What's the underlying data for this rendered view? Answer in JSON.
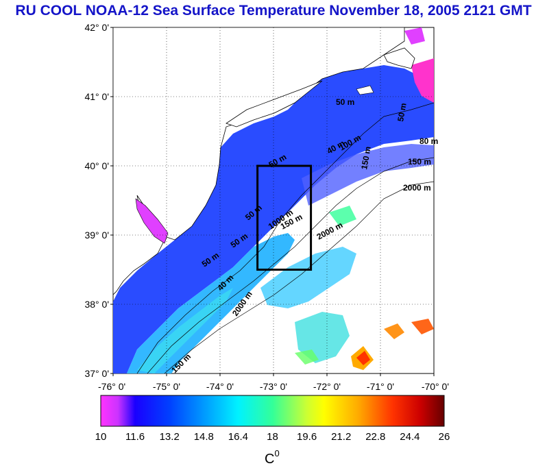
{
  "title": "RU COOL  NOAA-12 Sea Surface Temperature November 18, 2005 2121 GMT",
  "lat_ticks": [
    "42° 0'",
    "41° 0'",
    "40° 0'",
    "39° 0'",
    "38° 0'",
    "37° 0'"
  ],
  "lon_ticks": [
    "-76° 0'",
    "-75° 0'",
    "-74° 0'",
    "-73° 0'",
    "-72° 0'",
    "-71° 0'",
    "-70° 0'"
  ],
  "contour_labels": [
    "50 m",
    "50 m",
    "80 m",
    "150 m",
    "2000 m",
    "50 m",
    "40 m",
    "100 m",
    "150 m",
    "2000 m",
    "50 m",
    "50 m",
    "1000 m",
    "150 m",
    "2000 m",
    "50 m",
    "40 m",
    "150 m"
  ],
  "colorbar": {
    "ticks": [
      "10",
      "11.6",
      "13.2",
      "14.8",
      "16.4",
      "18",
      "19.6",
      "21.2",
      "22.8",
      "24.4",
      "26"
    ],
    "units": "C",
    "units_sup": "0",
    "min": 10,
    "max": 26
  },
  "study_box": {
    "lon_min": -73.3,
    "lon_max": -72.3,
    "lat_min": 38.5,
    "lat_max": 40.0
  }
}
